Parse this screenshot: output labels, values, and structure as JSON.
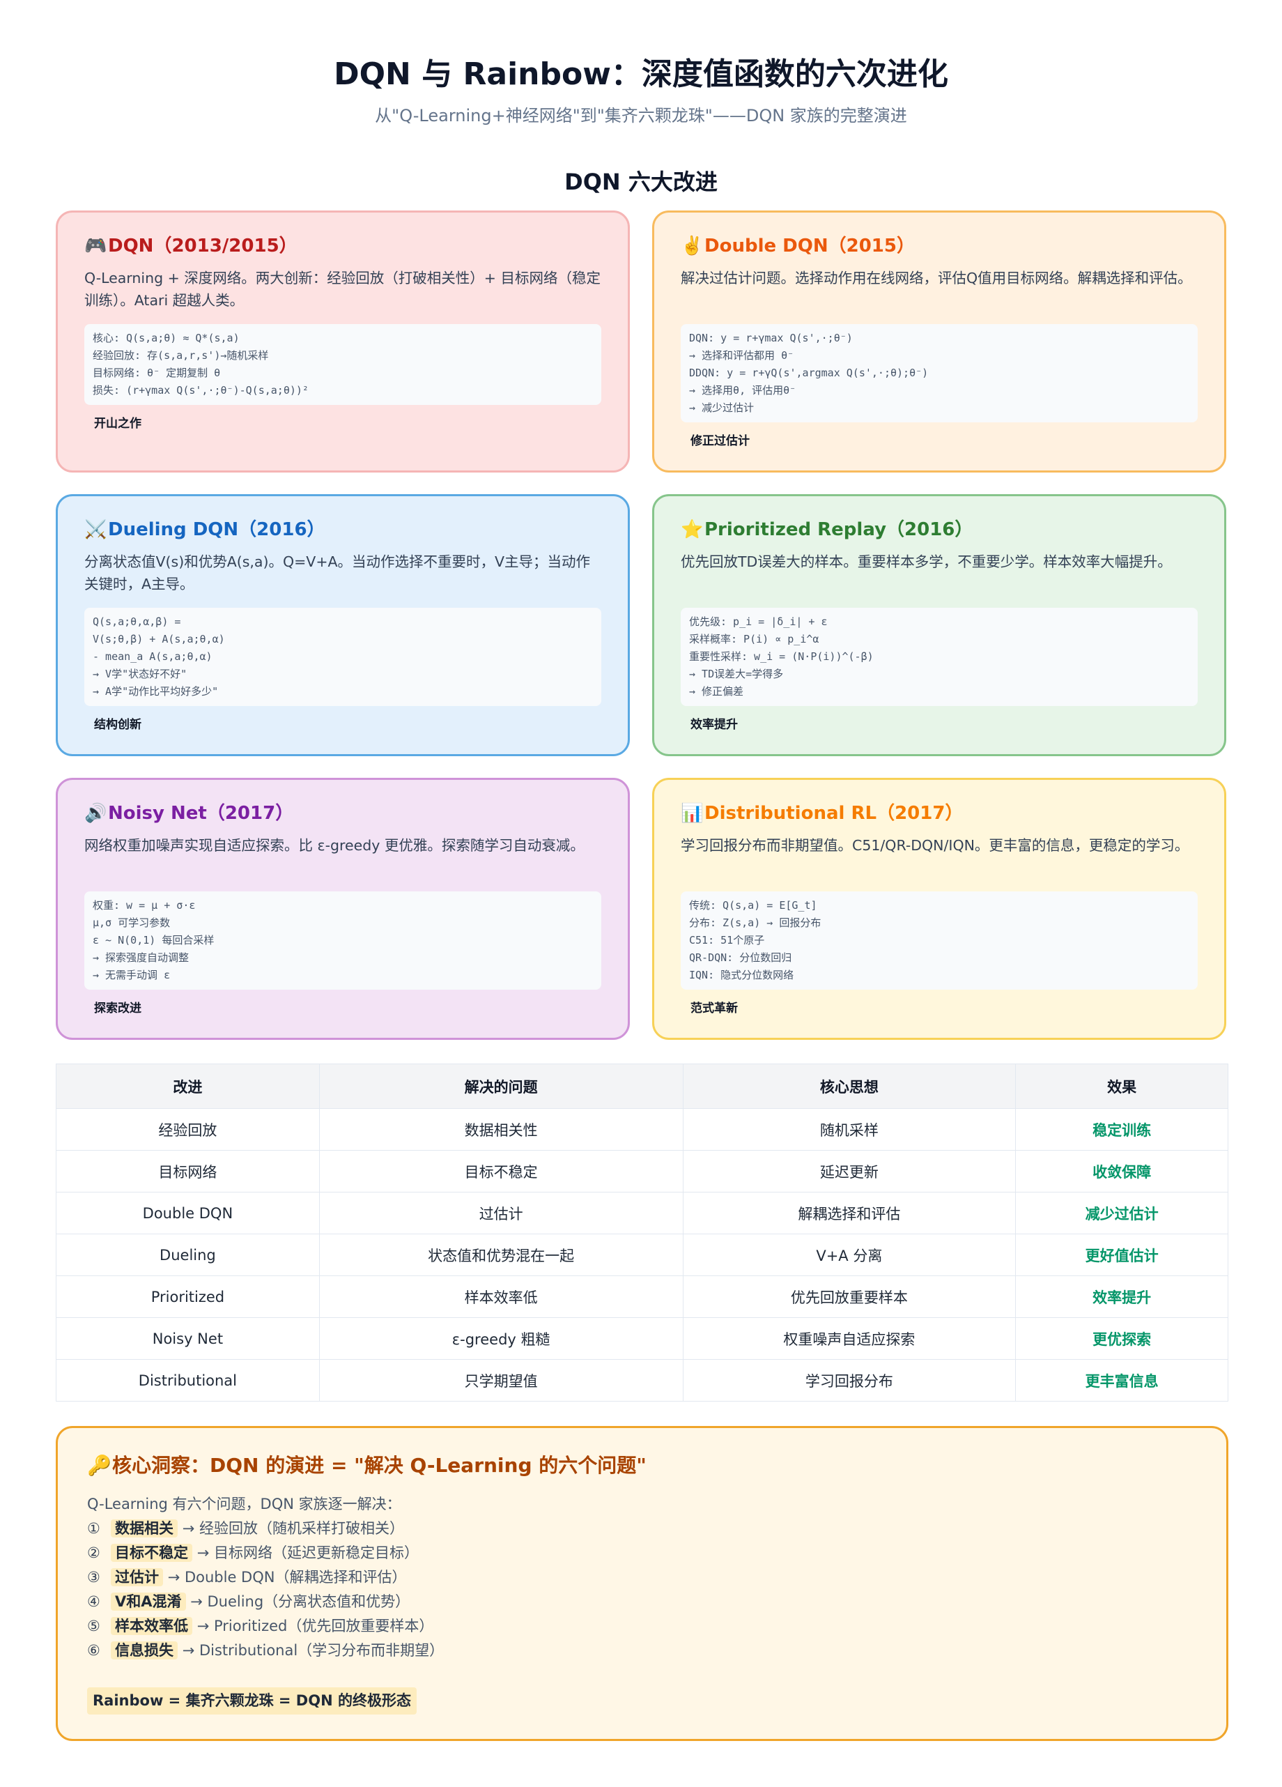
{
  "header": {
    "title": "DQN 与 Rainbow：深度值函数的六次进化",
    "subtitle": "从\"Q-Learning+神经网络\"到\"集齐六颗龙珠\"——DQN 家族的完整演进",
    "section_title": "DQN 六大改进"
  },
  "cards": [
    {
      "icon": "🎮",
      "icon_name": "game-controller-icon",
      "title": "DQN（2013/2015）",
      "desc": "Q-Learning + 深度网络。两大创新：经验回放（打破相关性）+ 目标网络（稳定训练）。Atari 超越人类。",
      "code": "核心: Q(s,a;θ) ≈ Q*(s,a)\n经验回放: 存(s,a,r,s')→随机采样\n目标网络: θ⁻ 定期复制 θ\n损失: (r+γmax Q(s',·;θ⁻)-Q(s,a;θ))²",
      "tag": "开山之作"
    },
    {
      "icon": "✌️",
      "icon_name": "victory-hand-icon",
      "title": "Double DQN（2015）",
      "desc": "解决过估计问题。选择动作用在线网络，评估Q值用目标网络。解耦选择和评估。",
      "code": "DQN: y = r+γmax Q(s',·;θ⁻)\n→ 选择和评估都用 θ⁻\nDDQN: y = r+γQ(s',argmax Q(s',·;θ);θ⁻)\n→ 选择用θ, 评估用θ⁻\n→ 减少过估计",
      "tag": "修正过估计"
    },
    {
      "icon": "⚔️",
      "icon_name": "crossed-swords-icon",
      "title": "Dueling DQN（2016）",
      "desc": "分离状态值V(s)和优势A(s,a)。Q=V+A。当动作选择不重要时，V主导；当动作关键时，A主导。",
      "code": "Q(s,a;θ,α,β) =\nV(s;θ,β) + A(s,a;θ,α)\n- mean_a A(s,a;θ,α)\n→ V学\"状态好不好\"\n→ A学\"动作比平均好多少\"",
      "tag": "结构创新"
    },
    {
      "icon": "⭐",
      "icon_name": "star-icon",
      "title": "Prioritized Replay（2016）",
      "desc": "优先回放TD误差大的样本。重要样本多学，不重要少学。样本效率大幅提升。",
      "code": "优先级: p_i = |δ_i| + ε\n采样概率: P(i) ∝ p_i^α\n重要性采样: w_i = (N·P(i))^(-β)\n→ TD误差大=学得多\n→ 修正偏差",
      "tag": "效率提升"
    },
    {
      "icon": "🔊",
      "icon_name": "speaker-icon",
      "title": "Noisy Net（2017）",
      "desc": "网络权重加噪声实现自适应探索。比 ε-greedy 更优雅。探索随学习自动衰减。",
      "code": "权重: w = μ + σ·ε\nμ,σ 可学习参数\nε ~ N(0,1) 每回合采样\n→ 探索强度自动调整\n→ 无需手动调 ε",
      "tag": "探索改进"
    },
    {
      "icon": "📊",
      "icon_name": "bar-chart-icon",
      "title": "Distributional RL（2017）",
      "desc": "学习回报分布而非期望值。C51/QR-DQN/IQN。更丰富的信息，更稳定的学习。",
      "code": "传统: Q(s,a) = E[G_t]\n分布: Z(s,a) → 回报分布\nC51: 51个原子\nQR-DQN: 分位数回归\nIQN: 隐式分位数网络",
      "tag": "范式革新"
    }
  ],
  "table": {
    "headers": [
      "改进",
      "解决的问题",
      "核心思想",
      "效果"
    ],
    "rows": [
      [
        "经验回放",
        "数据相关性",
        "随机采样",
        "稳定训练"
      ],
      [
        "目标网络",
        "目标不稳定",
        "延迟更新",
        "收敛保障"
      ],
      [
        "Double DQN",
        "过估计",
        "解耦选择和评估",
        "减少过估计"
      ],
      [
        "Dueling",
        "状态值和优势混在一起",
        "V+A 分离",
        "更好值估计"
      ],
      [
        "Prioritized",
        "样本效率低",
        "优先回放重要样本",
        "效率提升"
      ],
      [
        "Noisy Net",
        "ε-greedy 粗糙",
        "权重噪声自适应探索",
        "更优探索"
      ],
      [
        "Distributional",
        "只学期望值",
        "学习回报分布",
        "更丰富信息"
      ]
    ]
  },
  "insight": {
    "icon": "🔑",
    "icon_name": "key-icon",
    "title": "核心洞察：DQN 的演进 = \"解决 Q-Learning 的六个问题\"",
    "intro": "Q-Learning 有六个问题，DQN 家族逐一解决：",
    "items": [
      {
        "num": "①",
        "problem": "数据相关",
        "solution": "→ 经验回放（随机采样打破相关）"
      },
      {
        "num": "②",
        "problem": "目标不稳定",
        "solution": "→ 目标网络（延迟更新稳定目标）"
      },
      {
        "num": "③",
        "problem": "过估计",
        "solution": "→ Double DQN（解耦选择和评估）"
      },
      {
        "num": "④",
        "problem": "V和A混淆",
        "solution": "→ Dueling（分离状态值和优势）"
      },
      {
        "num": "⑤",
        "problem": "样本效率低",
        "solution": "→ Prioritized（优先回放重要样本）"
      },
      {
        "num": "⑥",
        "problem": "信息损失",
        "solution": "→ Distributional（学习分布而非期望）"
      }
    ],
    "conclusion": "Rainbow = 集齐六颗龙珠 = DQN 的终极形态"
  }
}
